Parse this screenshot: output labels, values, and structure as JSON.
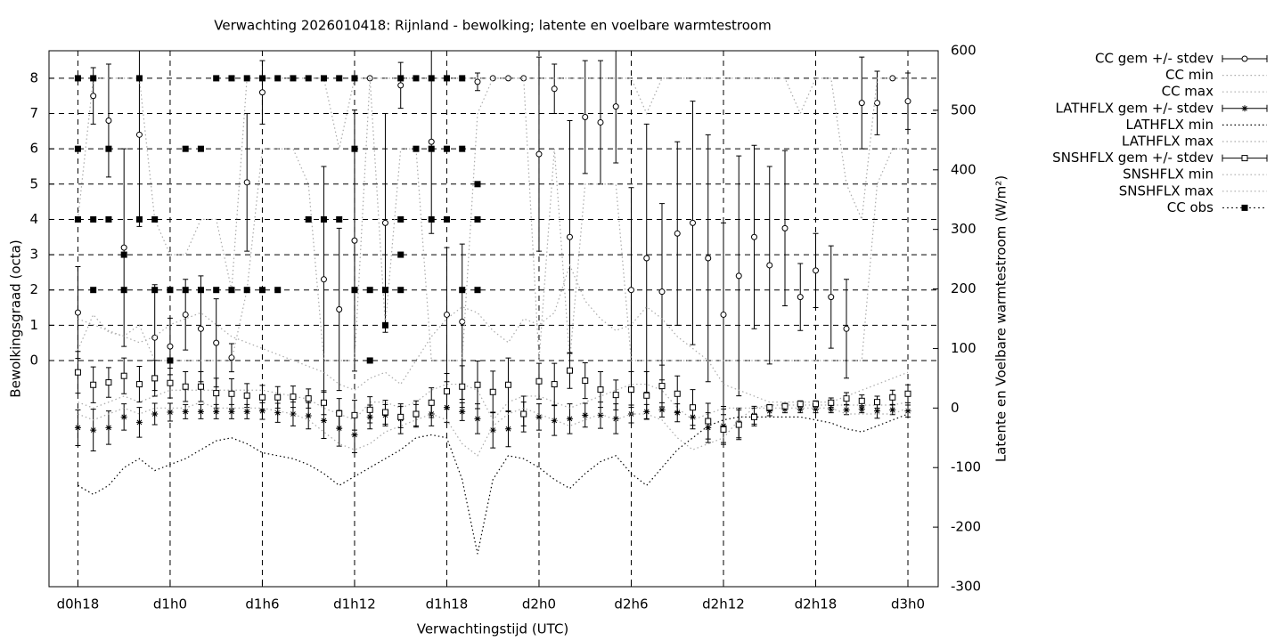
{
  "chart_data": {
    "type": "errorbar",
    "title": "Verwachting 2026010418: Rijnland - bewolking; latente en voelbare warmtestroom",
    "x_label": "Verwachtingstijd (UTC)",
    "y_label": "Bewolkingsgraad (octa)",
    "y2_label": "Latente en Voelbare warmtestroom (W/m²)",
    "xlim": [
      16.12,
      73.97
    ],
    "ylim": [
      -6.41,
      8.78
    ],
    "y2lim": [
      -300,
      600
    ],
    "grid": true,
    "legend": "outside-right",
    "xticks": [
      {
        "value": 18,
        "label": "d0h18"
      },
      {
        "value": 24,
        "label": "d1h0"
      },
      {
        "value": 30,
        "label": "d1h6"
      },
      {
        "value": 36,
        "label": "d1h12"
      },
      {
        "value": 42,
        "label": "d1h18"
      },
      {
        "value": 48,
        "label": "d2h0"
      },
      {
        "value": 54,
        "label": "d2h6"
      },
      {
        "value": 60,
        "label": "d2h12"
      },
      {
        "value": 66,
        "label": "d2h18"
      },
      {
        "value": 72,
        "label": "d3h0"
      }
    ],
    "yticks": [
      0,
      1,
      2,
      3,
      4,
      5,
      6,
      7,
      8
    ],
    "y2ticks": [
      -300,
      -200,
      -100,
      0,
      100,
      200,
      300,
      400,
      500,
      600
    ],
    "x": [
      18,
      19,
      20,
      21,
      22,
      23,
      24,
      25,
      26,
      27,
      28,
      29,
      30,
      31,
      32,
      33,
      34,
      35,
      36,
      37,
      38,
      39,
      40,
      41,
      42,
      43,
      44,
      45,
      46,
      47,
      48,
      49,
      50,
      51,
      52,
      53,
      54,
      55,
      56,
      57,
      58,
      59,
      60,
      61,
      62,
      63,
      64,
      65,
      66,
      67,
      68,
      69,
      70,
      71,
      72
    ],
    "series": [
      {
        "name": "CC gem +/- stdev",
        "style": "errorbar",
        "marker": "circle",
        "color": "#000000",
        "values": [
          1.36,
          7.5,
          6.8,
          3.2,
          6.4,
          0.65,
          0.4,
          1.3,
          0.9,
          0.5,
          0.08,
          5.05,
          7.6,
          null,
          null,
          null,
          2.3,
          1.45,
          3.4,
          8.0,
          3.9,
          7.8,
          null,
          6.2,
          1.3,
          1.1,
          7.9,
          8.0,
          8.0,
          8.0,
          5.85,
          7.7,
          3.5,
          6.9,
          6.75,
          7.2,
          2.0,
          2.9,
          1.95,
          3.6,
          3.9,
          2.9,
          1.3,
          2.4,
          3.5,
          2.7,
          3.75,
          1.8,
          2.55,
          1.8,
          0.9,
          7.3,
          7.3,
          8.0,
          7.35
        ],
        "errors": [
          1.3,
          0.8,
          1.6,
          2.8,
          2.6,
          1.5,
          0.8,
          1.0,
          1.5,
          1.25,
          0.4,
          1.95,
          0.9,
          null,
          null,
          null,
          3.2,
          2.3,
          3.7,
          0,
          3.1,
          0.65,
          null,
          2.6,
          1.9,
          2.2,
          0.25,
          0,
          0,
          0,
          2.75,
          0.7,
          3.3,
          1.6,
          1.75,
          1.6,
          2.9,
          3.8,
          2.5,
          2.6,
          3.45,
          3.5,
          2.6,
          3.4,
          2.6,
          2.8,
          2.2,
          0.95,
          1.05,
          1.45,
          1.4,
          1.3,
          0.9,
          0,
          0.8
        ]
      },
      {
        "name": "CC min",
        "style": "line",
        "color": "#aaaaaa",
        "values": [
          0.3,
          1.3,
          0.8,
          0.7,
          1,
          0,
          0,
          0,
          0,
          0,
          0,
          2,
          6,
          6,
          6,
          5,
          0,
          0,
          0,
          8,
          1,
          6,
          6,
          0,
          0,
          0,
          7,
          8,
          8,
          8,
          0,
          6,
          0,
          5,
          5,
          5,
          0,
          0,
          0,
          0,
          0,
          0,
          0,
          0,
          0,
          0,
          0,
          0,
          0,
          0,
          0,
          0,
          5,
          6,
          6
        ]
      },
      {
        "name": "CC max",
        "style": "line",
        "color": "#aaaaaa",
        "values": [
          4,
          8,
          8,
          8,
          8,
          4,
          3,
          3,
          4,
          4,
          2,
          8,
          8,
          8,
          8,
          8,
          8,
          6,
          8,
          8,
          8,
          8,
          8,
          8,
          8,
          8,
          8,
          8,
          8,
          8,
          8,
          8,
          8,
          8,
          8,
          8,
          8,
          7,
          8,
          8,
          8,
          8,
          8,
          8,
          8,
          8,
          8,
          7,
          8,
          8,
          5,
          4,
          8,
          8,
          8
        ]
      },
      {
        "name": "LATHFLX gem +/- stdev",
        "style": "errorbar",
        "marker": "star",
        "axis": "y2",
        "color": "#000000",
        "values": [
          -33,
          -37,
          -33,
          -15,
          -24,
          -10,
          -7,
          -6,
          -6,
          -6,
          -6,
          -6,
          -5,
          -8,
          -10,
          -13,
          -21,
          -34,
          -45,
          -15,
          -12,
          -18,
          -12,
          -10,
          1,
          -6,
          -18,
          -37,
          -35,
          -10,
          -15,
          -21,
          -18,
          -12,
          -12,
          -18,
          -10,
          -6,
          -3,
          -8,
          -15,
          -33,
          -30,
          -25,
          -12,
          -5,
          -2,
          -2,
          -2,
          -2,
          -3,
          -2,
          -5,
          -3,
          -5
        ],
        "errors": [
          30,
          35,
          28,
          22,
          25,
          18,
          15,
          12,
          12,
          12,
          12,
          12,
          14,
          16,
          20,
          22,
          30,
          30,
          30,
          20,
          18,
          25,
          18,
          20,
          25,
          15,
          25,
          30,
          30,
          20,
          22,
          25,
          25,
          20,
          22,
          25,
          15,
          12,
          12,
          15,
          20,
          25,
          28,
          25,
          15,
          8,
          6,
          6,
          6,
          6,
          8,
          6,
          12,
          8,
          10
        ]
      },
      {
        "name": "LATHFLX min",
        "style": "line",
        "axis": "y2",
        "color": "#000000",
        "values": [
          -130,
          -145,
          -130,
          -100,
          -85,
          -105,
          -95,
          -85,
          -70,
          -55,
          -50,
          -60,
          -75,
          -80,
          -85,
          -95,
          -110,
          -130,
          -115,
          -100,
          -85,
          -70,
          -50,
          -45,
          -50,
          -120,
          -245,
          -120,
          -80,
          -85,
          -100,
          -120,
          -135,
          -110,
          -90,
          -80,
          -110,
          -130,
          -100,
          -70,
          -50,
          -30,
          -20,
          -15,
          -15,
          -15,
          -15,
          -15,
          -20,
          -25,
          -35,
          -40,
          -30,
          -20,
          -10
        ]
      },
      {
        "name": "LATHFLX max",
        "style": "line",
        "axis": "y2",
        "color": "#aaaaaa",
        "values": [
          10,
          0,
          10,
          20,
          10,
          20,
          30,
          30,
          30,
          30,
          30,
          30,
          30,
          25,
          20,
          15,
          0,
          -10,
          -20,
          10,
          10,
          0,
          10,
          30,
          40,
          40,
          30,
          -20,
          10,
          20,
          20,
          10,
          0,
          10,
          20,
          30,
          40,
          40,
          30,
          0,
          -20,
          -10,
          0,
          0,
          0,
          5,
          5,
          5,
          5,
          5,
          5,
          5,
          5,
          5,
          10
        ]
      },
      {
        "name": "SNSHFLX gem +/- stdev",
        "style": "errorbar",
        "marker": "square",
        "axis": "y2",
        "color": "#000000",
        "values": [
          60,
          39,
          43,
          54,
          40,
          50,
          42,
          36,
          36,
          25,
          24,
          21,
          18,
          18,
          19,
          16,
          9,
          -9,
          -12,
          -3,
          -7,
          -15,
          -10,
          9,
          28,
          36,
          39,
          27,
          39,
          -10,
          45,
          40,
          63,
          46,
          31,
          22,
          31,
          21,
          37,
          24,
          1,
          -22,
          -36,
          -28,
          -15,
          1,
          3,
          7,
          7,
          9,
          16,
          12,
          10,
          18,
          24
        ],
        "errors": [
          35,
          30,
          25,
          30,
          30,
          30,
          25,
          25,
          25,
          25,
          25,
          20,
          20,
          18,
          18,
          16,
          20,
          25,
          25,
          22,
          20,
          18,
          22,
          25,
          30,
          35,
          40,
          35,
          45,
          30,
          30,
          35,
          30,
          30,
          30,
          25,
          30,
          40,
          35,
          30,
          30,
          30,
          25,
          25,
          15,
          5,
          5,
          5,
          5,
          8,
          10,
          10,
          10,
          12,
          15
        ]
      },
      {
        "name": "SNSHFLX min",
        "style": "line",
        "axis": "y2",
        "color": "#aaaaaa",
        "values": [
          -10,
          -20,
          -10,
          0,
          -10,
          0,
          0,
          0,
          10,
          0,
          0,
          0,
          0,
          -5,
          -10,
          -20,
          -40,
          -60,
          -70,
          -60,
          -40,
          -30,
          -20,
          -10,
          -20,
          -60,
          -80,
          -30,
          -10,
          0,
          -10,
          -20,
          -30,
          -20,
          -10,
          -20,
          -10,
          -10,
          -20,
          -50,
          -70,
          -60,
          -50,
          -20,
          0,
          0,
          0,
          0,
          0,
          0,
          -10,
          -10,
          -10,
          -10,
          0
        ]
      },
      {
        "name": "SNSHFLX max",
        "style": "line",
        "axis": "y2",
        "color": "#aaaaaa",
        "values": [
          150,
          140,
          130,
          120,
          110,
          120,
          140,
          150,
          160,
          140,
          120,
          110,
          100,
          90,
          80,
          70,
          60,
          40,
          30,
          50,
          60,
          40,
          80,
          120,
          150,
          170,
          160,
          130,
          110,
          150,
          140,
          160,
          240,
          180,
          150,
          130,
          140,
          170,
          150,
          120,
          100,
          80,
          40,
          30,
          20,
          10,
          10,
          10,
          10,
          10,
          20,
          30,
          40,
          50,
          60
        ]
      },
      {
        "name": "CC obs",
        "style": "points",
        "marker": "filled-square",
        "color": "#000000",
        "x": [
          18,
          18,
          18,
          19,
          19,
          19,
          20,
          20,
          21,
          21,
          22,
          22,
          23,
          23,
          24,
          24,
          25,
          25,
          26,
          26,
          27,
          27,
          28,
          28,
          29,
          29,
          30,
          30,
          31,
          31,
          32,
          33,
          33,
          34,
          34,
          35,
          35,
          36,
          36,
          36,
          37,
          37,
          38,
          38,
          39,
          39,
          39,
          39,
          40,
          40,
          41,
          41,
          41,
          42,
          42,
          42,
          43,
          43,
          43,
          44,
          44,
          44
        ],
        "values": [
          8,
          6,
          4,
          8,
          4,
          2,
          6,
          4,
          3,
          2,
          8,
          4,
          4,
          2,
          2,
          0,
          6,
          2,
          6,
          2,
          8,
          2,
          8,
          2,
          8,
          2,
          8,
          2,
          8,
          2,
          8,
          8,
          4,
          8,
          4,
          8,
          4,
          8,
          6,
          2,
          2,
          0,
          2,
          1,
          8,
          4,
          3,
          2,
          8,
          6,
          8,
          6,
          4,
          8,
          6,
          4,
          8,
          6,
          2,
          5,
          4,
          2
        ]
      }
    ]
  }
}
